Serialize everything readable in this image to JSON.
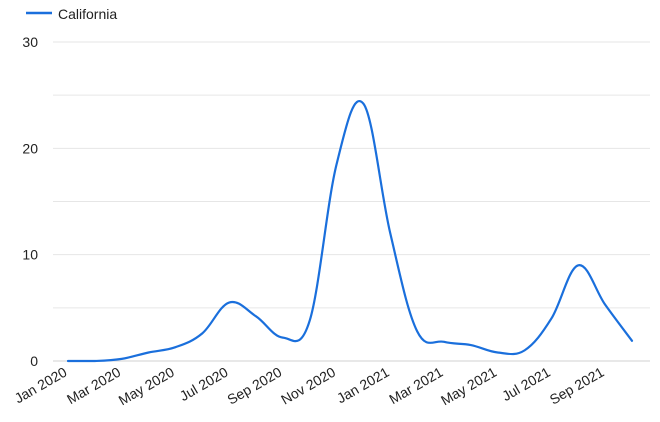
{
  "chart_data": {
    "type": "line",
    "title": "",
    "xlabel": "",
    "ylabel": "",
    "ylim": [
      0,
      30
    ],
    "yticks": [
      0,
      10,
      20,
      30
    ],
    "x_tick_labels": [
      "Jan 2020",
      "Mar 2020",
      "May 2020",
      "Jul 2020",
      "Sep 2020",
      "Nov 2020",
      "Jan 2021",
      "Mar 2021",
      "May 2021",
      "Jul 2021",
      "Sep 2021"
    ],
    "x": [
      "Jan 2020",
      "Feb 2020",
      "Mar 2020",
      "Apr 2020",
      "May 2020",
      "Jun 2020",
      "Jul 2020",
      "Aug 2020",
      "Sep 2020",
      "Oct 2020",
      "Nov 2020",
      "Dec 2020",
      "Jan 2021",
      "Feb 2021",
      "Mar 2021",
      "Apr 2021",
      "May 2021",
      "Jun 2021",
      "Jul 2021",
      "Aug 2021",
      "Sep 2021",
      "Oct 2021"
    ],
    "grid": true,
    "legend_position": "top-left",
    "series": [
      {
        "name": "California",
        "color": "#1a6fdc",
        "values": [
          0,
          0,
          0.2,
          0.8,
          1.3,
          2.6,
          5.5,
          4.2,
          2.2,
          3.8,
          18.5,
          24.2,
          12.0,
          2.8,
          1.8,
          1.5,
          0.8,
          1.0,
          4.0,
          9.0,
          5.3,
          1.9
        ]
      }
    ]
  }
}
